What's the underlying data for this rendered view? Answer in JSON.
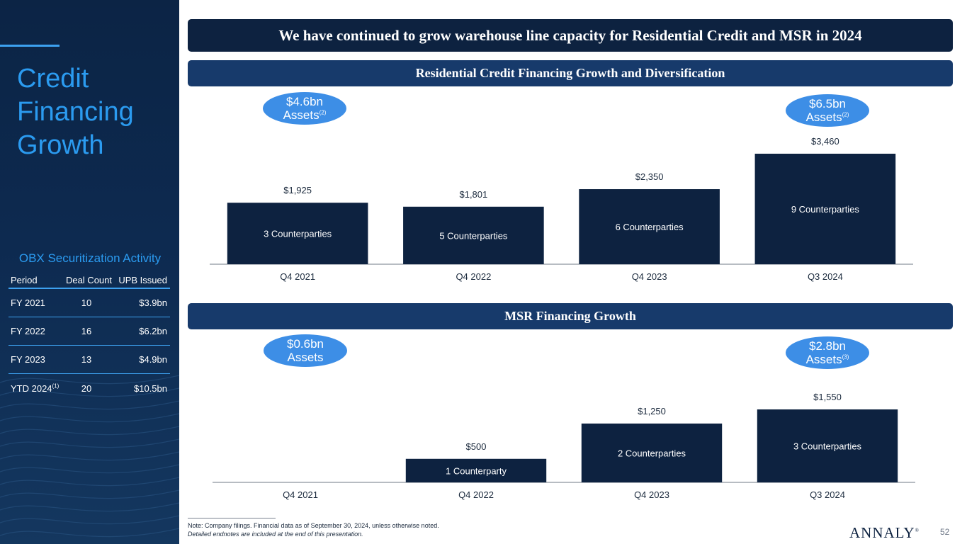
{
  "sidebar": {
    "title_lines": [
      "Credit",
      "Financing",
      "Growth"
    ],
    "obx": {
      "title": "OBX Securitization Activity",
      "headers": [
        "Period",
        "Deal Count",
        "UPB Issued"
      ],
      "rows": [
        {
          "period": "FY 2021",
          "sup": "",
          "count": "10",
          "upb": "$3.9bn"
        },
        {
          "period": "FY 2022",
          "sup": "",
          "count": "16",
          "upb": "$6.2bn"
        },
        {
          "period": "FY 2023",
          "sup": "",
          "count": "13",
          "upb": "$4.9bn"
        },
        {
          "period": "YTD 2024",
          "sup": "(1)",
          "count": "20",
          "upb": "$10.5bn"
        }
      ]
    }
  },
  "headline": "We have continued to grow warehouse line capacity for Residential Credit and MSR in 2024",
  "colors": {
    "navy": "#0d2240",
    "banner_blue": "#173a6b",
    "accent": "#2b9bf0",
    "bubble": "#3d8ee6",
    "bar": "#0d2240"
  },
  "bubbles": {
    "residential_left": {
      "line1": "$4.6bn",
      "line2": "Assets",
      "sup": "(2)"
    },
    "residential_right": {
      "line1": "$6.5bn",
      "line2": "Assets",
      "sup": "(2)"
    },
    "msr_left": {
      "line1": "$0.6bn",
      "line2": "Assets",
      "sup": ""
    },
    "msr_right": {
      "line1": "$2.8bn",
      "line2": "Assets",
      "sup": "(3)"
    }
  },
  "chart_data": [
    {
      "type": "bar",
      "title": "Residential Credit Financing Growth and Diversification",
      "categories": [
        "Q4 2021",
        "Q4 2022",
        "Q4 2023",
        "Q3 2024"
      ],
      "values": [
        1925,
        1801,
        2350,
        3460
      ],
      "value_labels": [
        "$1,925",
        "$1,801",
        "$2,350",
        "$3,460"
      ],
      "inner_labels": [
        "3 Counterparties",
        "5 Counterparties",
        "6 Counterparties",
        "9 Counterparties"
      ],
      "ylim": [
        0,
        3460
      ],
      "grid": false,
      "legend": "none"
    },
    {
      "type": "bar",
      "title": "MSR Financing Growth",
      "categories": [
        "Q4 2021",
        "Q4 2022",
        "Q4 2023",
        "Q3 2024"
      ],
      "values": [
        0,
        500,
        1250,
        1550
      ],
      "value_labels": [
        "",
        "$500",
        "$1,250",
        "$1,550"
      ],
      "inner_labels": [
        "",
        "1 Counterparty",
        "2 Counterparties",
        "3 Counterparties"
      ],
      "ylim": [
        0,
        1550
      ],
      "grid": false,
      "legend": "none"
    }
  ],
  "footnotes": {
    "note": "Note: Company filings. Financial data as of September 30, 2024, unless otherwise noted.",
    "endnotes": "Detailed endnotes are included at the end of this presentation."
  },
  "logo": {
    "text": "ANNALY",
    "mark": "®"
  },
  "page_number": "52"
}
